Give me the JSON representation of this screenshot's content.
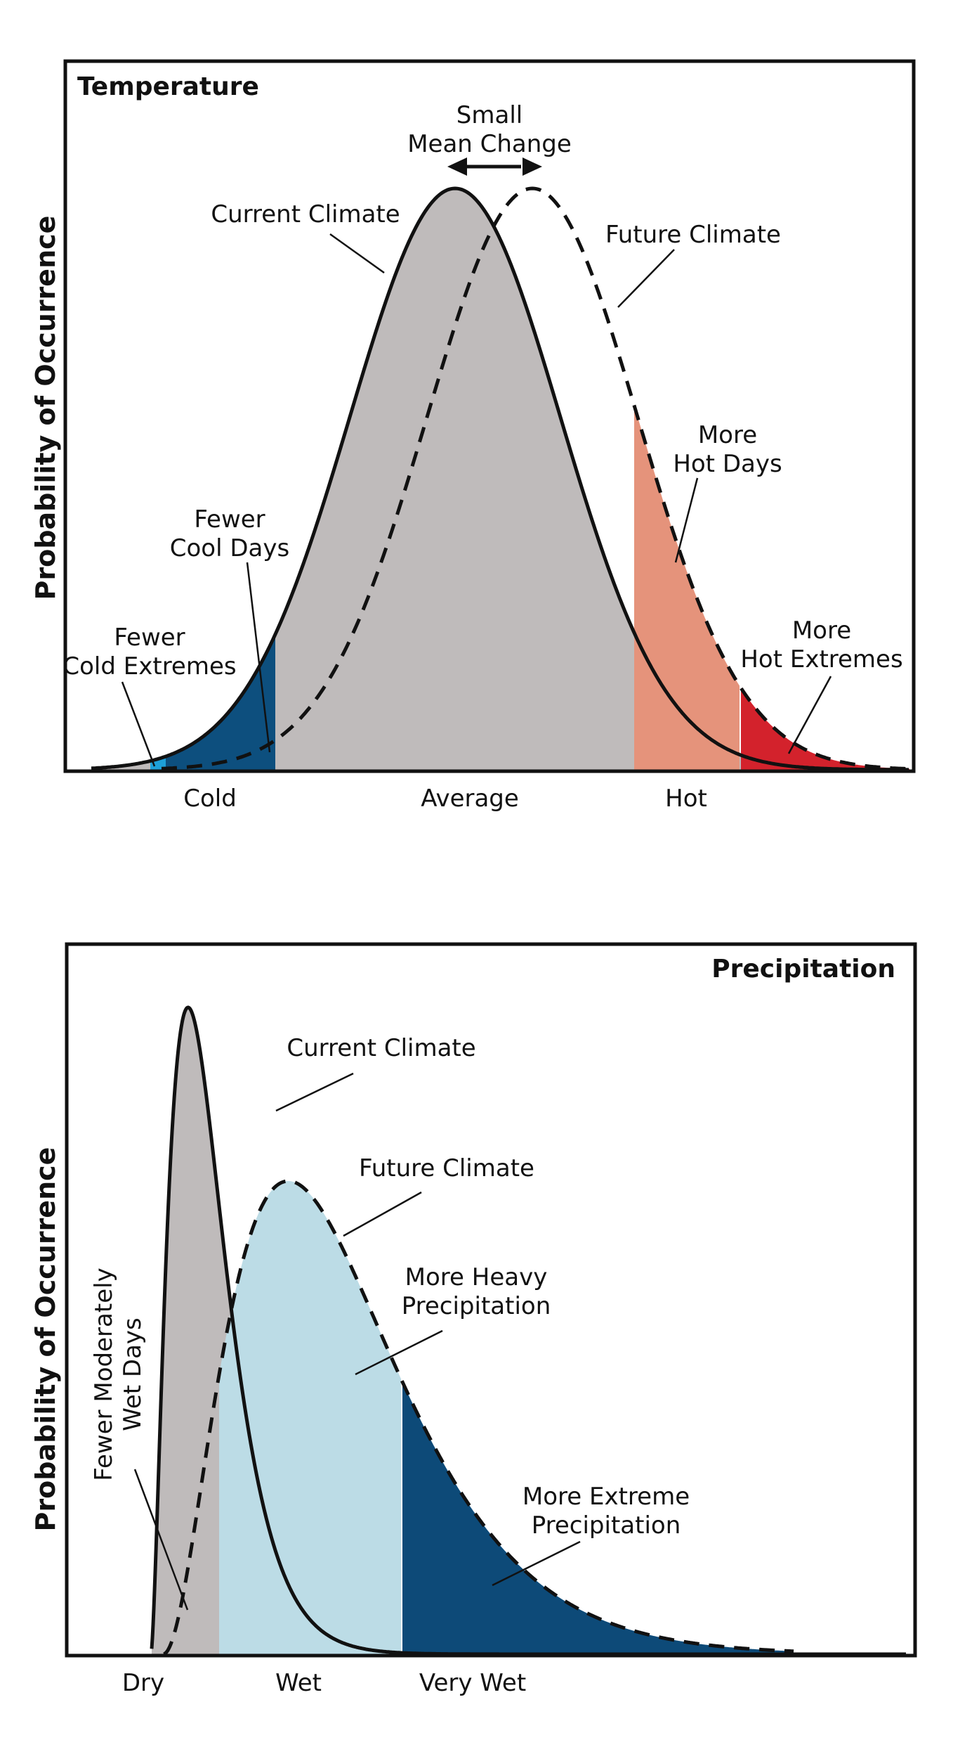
{
  "panels": [
    {
      "title": "Temperature",
      "y_label": "Probability of Occurrence",
      "x_ticks": [
        "Cold",
        "Average",
        "Hot"
      ],
      "labels": {
        "small_mean_change": [
          "Small",
          "Mean Change"
        ],
        "current_climate": [
          "Current Climate"
        ],
        "future_climate": [
          "Future Climate"
        ],
        "more_hot_days": [
          "More",
          "Hot Days"
        ],
        "fewer_cool_days": [
          "Fewer",
          "Cool Days"
        ],
        "fewer_cold_extremes": [
          "Fewer",
          "Cold Extremes"
        ],
        "more_hot_extremes": [
          "More",
          "Hot Extremes"
        ]
      }
    },
    {
      "title": "Precipitation",
      "y_label": "Probability of Occurrence",
      "x_ticks": [
        "Dry",
        "Wet",
        "Very Wet"
      ],
      "labels": {
        "current_climate": [
          "Current Climate"
        ],
        "future_climate": [
          "Future Climate"
        ],
        "more_heavy_precipitation": [
          "More Heavy",
          "Precipitation"
        ],
        "more_extreme_precipitation": [
          "More Extreme",
          "Precipitation"
        ],
        "fewer_moderately_wet_days": [
          "Fewer Moderately",
          "Wet Days"
        ]
      }
    }
  ],
  "colors": {
    "current_fill": "#bfbbbb",
    "cold_extreme": "#1ea0d8",
    "cool_days": "#0d4f7e",
    "hot_days": "#e5937b",
    "hot_extremes": "#d3222c",
    "heavy_precip": "#bcdce6",
    "extreme_precip": "#0d4a78"
  }
}
